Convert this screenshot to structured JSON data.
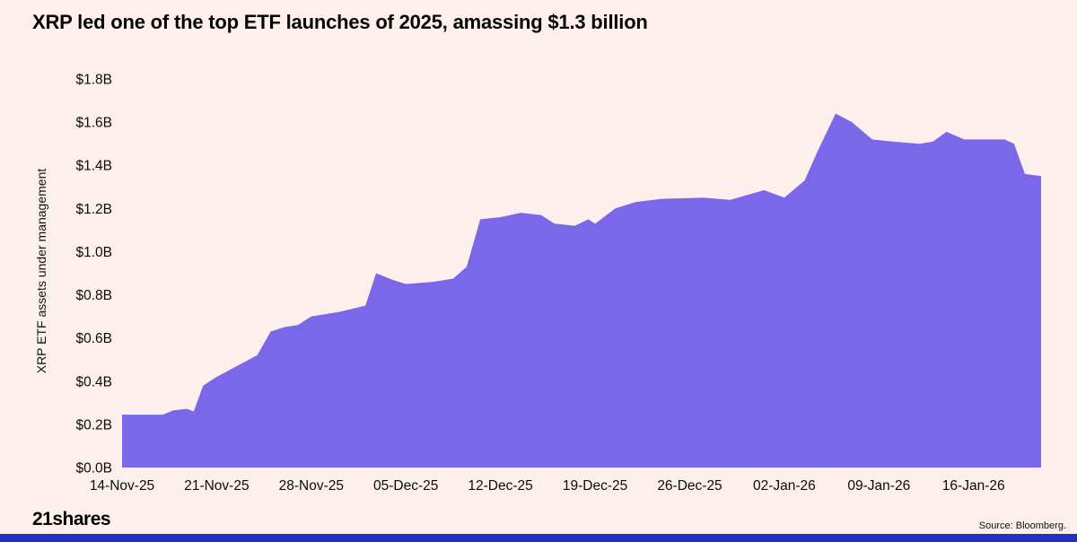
{
  "header": {
    "title": "XRP led one of the top ETF launches of 2025, amassing $1.3 billion"
  },
  "footer": {
    "brand": "21shares",
    "source": "Source: Bloomberg."
  },
  "colors": {
    "background": "#fdf0ec",
    "area": "#7a68e8",
    "bottom_bar": "#2130c4",
    "text": "#0b0b0b"
  },
  "chart_data": {
    "type": "area",
    "title": "XRP led one of the top ETF launches of 2025, amassing $1.3 billion",
    "ylabel": "XRP ETF assets under management",
    "xlabel": "",
    "grid": false,
    "legend": false,
    "ylim": [
      0,
      1.8
    ],
    "x_unit": "days since 14-Nov-25",
    "x_range_days": [
      0,
      68
    ],
    "y_tick_values": [
      0,
      0.2,
      0.4,
      0.6,
      0.8,
      1.0,
      1.2,
      1.4,
      1.6,
      1.8
    ],
    "y_tick_labels": [
      "$0.0B",
      "$0.2B",
      "$0.4B",
      "$0.6B",
      "$0.8B",
      "$1.0B",
      "$1.2B",
      "$1.4B",
      "$1.6B",
      "$1.8B"
    ],
    "x_tick_days": [
      0,
      7,
      14,
      21,
      28,
      35,
      42,
      49,
      56,
      63
    ],
    "x_tick_labels": [
      "14-Nov-25",
      "21-Nov-25",
      "28-Nov-25",
      "05-Dec-25",
      "12-Dec-25",
      "19-Dec-25",
      "26-Dec-25",
      "02-Jan-26",
      "09-Jan-26",
      "16-Jan-26"
    ],
    "series": [
      {
        "name": "XRP ETF assets under management ($B)",
        "day_offsets": [
          0,
          3,
          3.8,
          4.8,
          5.3,
          6,
          7,
          8.5,
          10,
          11,
          12,
          13,
          14,
          16,
          18,
          18.8,
          20,
          21,
          23,
          24.5,
          25.5,
          26.5,
          28,
          29.5,
          31,
          32,
          33.5,
          34.5,
          35,
          36.5,
          38,
          40,
          43,
          45,
          47.5,
          49,
          50.5,
          51.5,
          52.8,
          54,
          55.5,
          57,
          59,
          60,
          61,
          62.3,
          65.3,
          66,
          66.8,
          68
        ],
        "values": [
          0.245,
          0.245,
          0.265,
          0.272,
          0.26,
          0.38,
          0.42,
          0.47,
          0.52,
          0.63,
          0.65,
          0.66,
          0.7,
          0.72,
          0.75,
          0.9,
          0.87,
          0.85,
          0.86,
          0.875,
          0.93,
          1.15,
          1.16,
          1.18,
          1.17,
          1.13,
          1.12,
          1.15,
          1.13,
          1.2,
          1.23,
          1.245,
          1.25,
          1.24,
          1.285,
          1.25,
          1.33,
          1.47,
          1.64,
          1.6,
          1.52,
          1.51,
          1.5,
          1.51,
          1.555,
          1.52,
          1.52,
          1.5,
          1.36,
          1.35
        ]
      }
    ]
  }
}
